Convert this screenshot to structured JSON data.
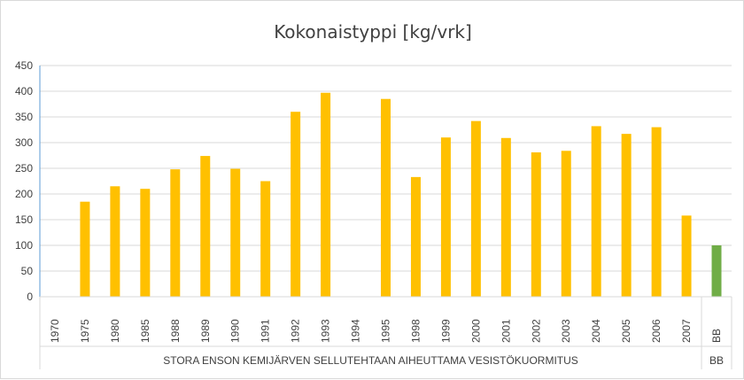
{
  "chart_data": {
    "type": "bar",
    "title": "Kokonaistyppi  [kg/vrk]",
    "xlabel": "",
    "ylabel": "",
    "ylim": [
      0,
      450
    ],
    "yticks": [
      0,
      50,
      100,
      150,
      200,
      250,
      300,
      350,
      400,
      450
    ],
    "grid": true,
    "legend": "none",
    "categories": [
      "1970",
      "1975",
      "1980",
      "1985",
      "1988",
      "1989",
      "1990",
      "1991",
      "1992",
      "1993",
      "1994",
      "1995",
      "1998",
      "1999",
      "2000",
      "2001",
      "2002",
      "2003",
      "2004",
      "2005",
      "2006",
      "2007",
      "BB"
    ],
    "values": [
      0,
      185,
      215,
      210,
      248,
      274,
      249,
      225,
      360,
      397,
      0,
      385,
      233,
      310,
      342,
      309,
      281,
      284,
      332,
      317,
      330,
      158,
      100
    ],
    "groups": [
      {
        "label": "STORA ENSON KEMIJÄRVEN SELLUTEHTAAN AIHEUTTAMA VESISTÖKUORMITUS",
        "count": 22
      },
      {
        "label": "BB",
        "count": 1
      }
    ],
    "colors": {
      "main_bars": "#ffc000",
      "bb_bar": "#70ad47",
      "axis_left": "#5b9bd5"
    }
  }
}
